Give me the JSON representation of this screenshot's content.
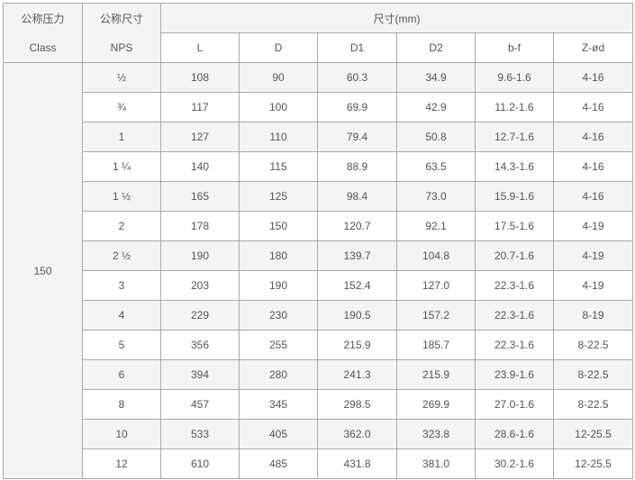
{
  "header": {
    "class_cn": "公称压力",
    "class_en": "Class",
    "nps_cn": "公称尺寸",
    "nps_en": "NPS",
    "dimensions_group": "尺寸(mm)",
    "columns": [
      "L",
      "D",
      "D1",
      "D2",
      "b-f",
      "Z-ød"
    ]
  },
  "class_value": "150",
  "rows": [
    {
      "nps": "½",
      "values": [
        "108",
        "90",
        "60.3",
        "34.9",
        "9.6-1.6",
        "4-16"
      ]
    },
    {
      "nps": "¾",
      "values": [
        "117",
        "100",
        "69.9",
        "42.9",
        "11.2-1.6",
        "4-16"
      ]
    },
    {
      "nps": "1",
      "values": [
        "127",
        "110",
        "79.4",
        "50.8",
        "12.7-1.6",
        "4-16"
      ]
    },
    {
      "nps": "1 ¼",
      "values": [
        "140",
        "115",
        "88.9",
        "63.5",
        "14.3-1.6",
        "4-16"
      ]
    },
    {
      "nps": "1 ½",
      "values": [
        "165",
        "125",
        "98.4",
        "73.0",
        "15.9-1.6",
        "4-16"
      ]
    },
    {
      "nps": "2",
      "values": [
        "178",
        "150",
        "120.7",
        "92.1",
        "17.5-1.6",
        "4-19"
      ]
    },
    {
      "nps": "2 ½",
      "values": [
        "190",
        "180",
        "139.7",
        "104.8",
        "20.7-1.6",
        "4-19"
      ]
    },
    {
      "nps": "3",
      "values": [
        "203",
        "190",
        "152.4",
        "127.0",
        "22.3-1.6",
        "4-19"
      ]
    },
    {
      "nps": "4",
      "values": [
        "229",
        "230",
        "190.5",
        "157.2",
        "22.3-1.6",
        "8-19"
      ]
    },
    {
      "nps": "5",
      "values": [
        "356",
        "255",
        "215.9",
        "185.7",
        "22.3-1.6",
        "8-22.5"
      ]
    },
    {
      "nps": "6",
      "values": [
        "394",
        "280",
        "241.3",
        "215.9",
        "23.9-1.6",
        "8-22.5"
      ]
    },
    {
      "nps": "8",
      "values": [
        "457",
        "345",
        "298.5",
        "269.9",
        "27.0-1.6",
        "8-22.5"
      ]
    },
    {
      "nps": "10",
      "values": [
        "533",
        "405",
        "362.0",
        "323.8",
        "28.6-1.6",
        "12-25.5"
      ]
    },
    {
      "nps": "12",
      "values": [
        "610",
        "485",
        "431.8",
        "381.0",
        "30.2-1.6",
        "12-25.5"
      ]
    }
  ]
}
